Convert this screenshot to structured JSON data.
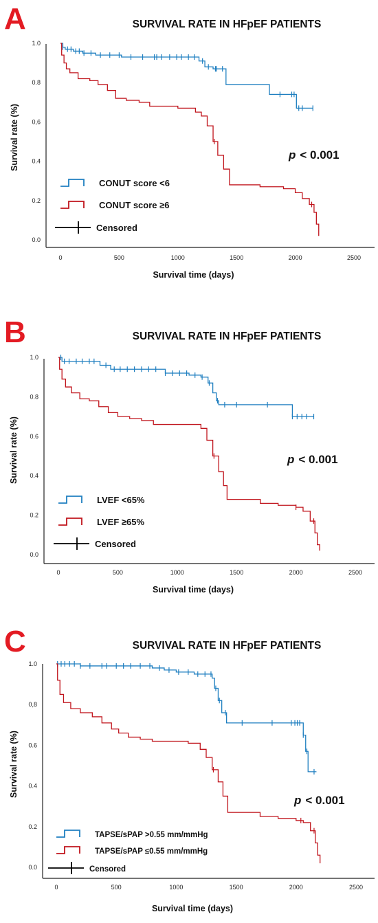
{
  "colors": {
    "blue": "#1f7fc0",
    "red": "#c0141c",
    "black": "#000000",
    "letter": "#e31b23"
  },
  "chart_data": [
    {
      "type": "line",
      "panel_letter": "A",
      "title": "SURVIVAL RATE IN HFpEF PATIENTS",
      "xlabel": "Survival time (days)",
      "ylabel": "Survival rate (%)",
      "xlim": [
        0,
        2500
      ],
      "ylim": [
        0,
        1
      ],
      "x_ticks": [
        "0",
        "500",
        "1000",
        "1500",
        "2000",
        "2500"
      ],
      "y_ticks": [
        "0.0",
        "0.2",
        "0.4",
        "0,6",
        "0.8",
        "1.0"
      ],
      "p_value": "< 0.001",
      "p_label": "p",
      "legend_placement": "bottom-left",
      "censored_label": "Censored",
      "series": [
        {
          "name": "CONUT score <6",
          "color": "blue",
          "steps": [
            [
              0,
              1.0
            ],
            [
              20,
              0.98
            ],
            [
              40,
              0.97
            ],
            [
              110,
              0.96
            ],
            [
              190,
              0.95
            ],
            [
              300,
              0.94
            ],
            [
              520,
              0.93
            ],
            [
              1180,
              0.91
            ],
            [
              1230,
              0.88
            ],
            [
              1300,
              0.87
            ],
            [
              1410,
              0.79
            ],
            [
              1780,
              0.74
            ],
            [
              2010,
              0.67
            ],
            [
              2150,
              0.67
            ]
          ],
          "censored": [
            20,
            60,
            90,
            130,
            160,
            200,
            260,
            340,
            420,
            500,
            600,
            700,
            800,
            820,
            860,
            930,
            990,
            1030,
            1090,
            1140,
            1210,
            1260,
            1320,
            1330,
            1380,
            1870,
            1970,
            1990,
            2030,
            2060,
            2150
          ]
        },
        {
          "name": "CONUT score ≥6",
          "color": "red",
          "steps": [
            [
              0,
              1.0
            ],
            [
              10,
              0.94
            ],
            [
              30,
              0.9
            ],
            [
              50,
              0.87
            ],
            [
              80,
              0.85
            ],
            [
              150,
              0.82
            ],
            [
              250,
              0.81
            ],
            [
              320,
              0.79
            ],
            [
              400,
              0.76
            ],
            [
              470,
              0.72
            ],
            [
              560,
              0.71
            ],
            [
              670,
              0.7
            ],
            [
              760,
              0.68
            ],
            [
              850,
              0.68
            ],
            [
              1000,
              0.67
            ],
            [
              1150,
              0.65
            ],
            [
              1200,
              0.63
            ],
            [
              1250,
              0.58
            ],
            [
              1300,
              0.5
            ],
            [
              1340,
              0.43
            ],
            [
              1390,
              0.36
            ],
            [
              1440,
              0.28
            ],
            [
              1500,
              0.28
            ],
            [
              1550,
              0.28
            ],
            [
              1700,
              0.27
            ],
            [
              1900,
              0.26
            ],
            [
              2000,
              0.24
            ],
            [
              2060,
              0.21
            ],
            [
              2120,
              0.18
            ],
            [
              2160,
              0.14
            ],
            [
              2180,
              0.08
            ],
            [
              2200,
              0.02
            ]
          ],
          "censored": [
            1310,
            2140
          ]
        }
      ]
    },
    {
      "type": "line",
      "panel_letter": "B",
      "title": "SURVIVAL RATE IN HFpEF PATIENTS",
      "xlabel": "Survival time (days)",
      "ylabel": "Survival rate (%)",
      "xlim": [
        0,
        2500
      ],
      "ylim": [
        0,
        1
      ],
      "x_ticks": [
        "0",
        "500",
        "1000",
        "1500",
        "2000",
        "2500"
      ],
      "y_ticks": [
        "0.0",
        "0.2",
        "0.4",
        "0.6",
        "0.8",
        "1.0"
      ],
      "p_value": "< 0.001",
      "p_label": "p",
      "legend_placement": "bottom-left",
      "censored_label": "Censored",
      "series": [
        {
          "name": "LVEF <65%",
          "color": "blue",
          "steps": [
            [
              0,
              1.0
            ],
            [
              30,
              0.98
            ],
            [
              350,
              0.96
            ],
            [
              440,
              0.94
            ],
            [
              900,
              0.92
            ],
            [
              1100,
              0.91
            ],
            [
              1200,
              0.9
            ],
            [
              1260,
              0.87
            ],
            [
              1300,
              0.82
            ],
            [
              1330,
              0.78
            ],
            [
              1350,
              0.76
            ],
            [
              1970,
              0.7
            ],
            [
              2150,
              0.7
            ]
          ],
          "censored": [
            20,
            50,
            90,
            150,
            200,
            260,
            300,
            400,
            470,
            520,
            580,
            640,
            700,
            760,
            820,
            900,
            960,
            1020,
            1080,
            1150,
            1210,
            1270,
            1340,
            1400,
            1500,
            1760,
            1970,
            2010,
            2050,
            2090,
            2150
          ]
        },
        {
          "name": "LVEF ≥65%",
          "color": "red",
          "steps": [
            [
              0,
              1.0
            ],
            [
              10,
              0.94
            ],
            [
              30,
              0.89
            ],
            [
              60,
              0.85
            ],
            [
              110,
              0.82
            ],
            [
              180,
              0.79
            ],
            [
              260,
              0.78
            ],
            [
              340,
              0.75
            ],
            [
              420,
              0.72
            ],
            [
              500,
              0.7
            ],
            [
              600,
              0.69
            ],
            [
              700,
              0.68
            ],
            [
              800,
              0.66
            ],
            [
              900,
              0.66
            ],
            [
              1100,
              0.66
            ],
            [
              1200,
              0.64
            ],
            [
              1250,
              0.58
            ],
            [
              1300,
              0.5
            ],
            [
              1350,
              0.42
            ],
            [
              1390,
              0.35
            ],
            [
              1420,
              0.28
            ],
            [
              1500,
              0.28
            ],
            [
              1600,
              0.28
            ],
            [
              1700,
              0.26
            ],
            [
              1850,
              0.25
            ],
            [
              2000,
              0.24
            ],
            [
              2060,
              0.22
            ],
            [
              2120,
              0.17
            ],
            [
              2160,
              0.11
            ],
            [
              2180,
              0.05
            ],
            [
              2200,
              0.02
            ]
          ],
          "censored": [
            1310,
            2000,
            2150
          ]
        }
      ]
    },
    {
      "type": "line",
      "panel_letter": "C",
      "title": "SURVIVAL RATE IN HFpEF PATIENTS",
      "xlabel": "Survival time (days)",
      "ylabel": "Survival rate (%)",
      "xlim": [
        0,
        2500
      ],
      "ylim": [
        0,
        1
      ],
      "x_ticks": [
        "0",
        "500",
        "1000",
        "1500",
        "2000",
        "2500"
      ],
      "y_ticks": [
        "0.0",
        "0.2",
        "0.4",
        "0.6",
        "0,8",
        "1.0"
      ],
      "p_value": "< 0.001",
      "p_label": "p",
      "legend_placement": "bottom-left",
      "censored_label": "Censored",
      "series": [
        {
          "name": "TAPSE/sPAP >0.55 mm/mmHg",
          "color": "blue",
          "steps": [
            [
              0,
              1.0
            ],
            [
              200,
              0.99
            ],
            [
              500,
              0.99
            ],
            [
              700,
              0.99
            ],
            [
              800,
              0.98
            ],
            [
              900,
              0.97
            ],
            [
              1000,
              0.96
            ],
            [
              1150,
              0.95
            ],
            [
              1200,
              0.95
            ],
            [
              1300,
              0.93
            ],
            [
              1320,
              0.88
            ],
            [
              1350,
              0.82
            ],
            [
              1380,
              0.76
            ],
            [
              1420,
              0.71
            ],
            [
              1700,
              0.71
            ],
            [
              2000,
              0.71
            ],
            [
              2060,
              0.65
            ],
            [
              2080,
              0.57
            ],
            [
              2100,
              0.47
            ],
            [
              2170,
              0.47
            ]
          ],
          "censored": [
            10,
            40,
            70,
            110,
            150,
            200,
            280,
            380,
            420,
            500,
            560,
            620,
            700,
            780,
            860,
            940,
            1020,
            1100,
            1180,
            1240,
            1290,
            1330,
            1360,
            1410,
            1550,
            1800,
            1960,
            1990,
            2010,
            2030,
            2060,
            2090,
            2150
          ]
        },
        {
          "name": "TAPSE/sPAP ≤0.55 mm/mmHg",
          "color": "red",
          "steps": [
            [
              0,
              1.0
            ],
            [
              10,
              0.92
            ],
            [
              30,
              0.85
            ],
            [
              60,
              0.81
            ],
            [
              120,
              0.78
            ],
            [
              200,
              0.76
            ],
            [
              300,
              0.74
            ],
            [
              380,
              0.71
            ],
            [
              460,
              0.68
            ],
            [
              520,
              0.66
            ],
            [
              600,
              0.64
            ],
            [
              700,
              0.63
            ],
            [
              800,
              0.62
            ],
            [
              900,
              0.62
            ],
            [
              1100,
              0.61
            ],
            [
              1200,
              0.58
            ],
            [
              1250,
              0.54
            ],
            [
              1300,
              0.48
            ],
            [
              1350,
              0.42
            ],
            [
              1390,
              0.35
            ],
            [
              1430,
              0.27
            ],
            [
              1500,
              0.27
            ],
            [
              1600,
              0.27
            ],
            [
              1700,
              0.25
            ],
            [
              1850,
              0.24
            ],
            [
              2000,
              0.23
            ],
            [
              2060,
              0.22
            ],
            [
              2120,
              0.18
            ],
            [
              2160,
              0.12
            ],
            [
              2180,
              0.06
            ],
            [
              2200,
              0.02
            ]
          ],
          "censored": [
            1310,
            2040,
            2150
          ]
        }
      ]
    }
  ]
}
